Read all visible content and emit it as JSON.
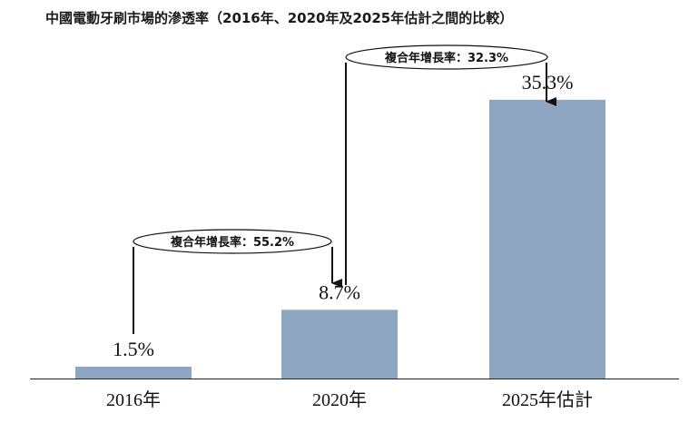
{
  "chart_data": {
    "type": "bar",
    "title": "中國電動牙刷市場的滲透率（2016年、2020年及2025年估計之間的比較）",
    "categories": [
      "2016年",
      "2020年",
      "2025年估計"
    ],
    "values": [
      1.5,
      8.7,
      35.3
    ],
    "value_labels": [
      "1.5%",
      "8.7%",
      "35.3%"
    ],
    "ylim": [
      0,
      40
    ],
    "bar_color": "#8fa6c2",
    "grid": false,
    "annotations": [
      {
        "text": "複合年增長率：55.2%",
        "from_category": "2016年",
        "to_category": "2020年"
      },
      {
        "text": "複合年增長率：32.3%",
        "from_category": "2020年",
        "to_category": "2025年估計"
      }
    ]
  }
}
